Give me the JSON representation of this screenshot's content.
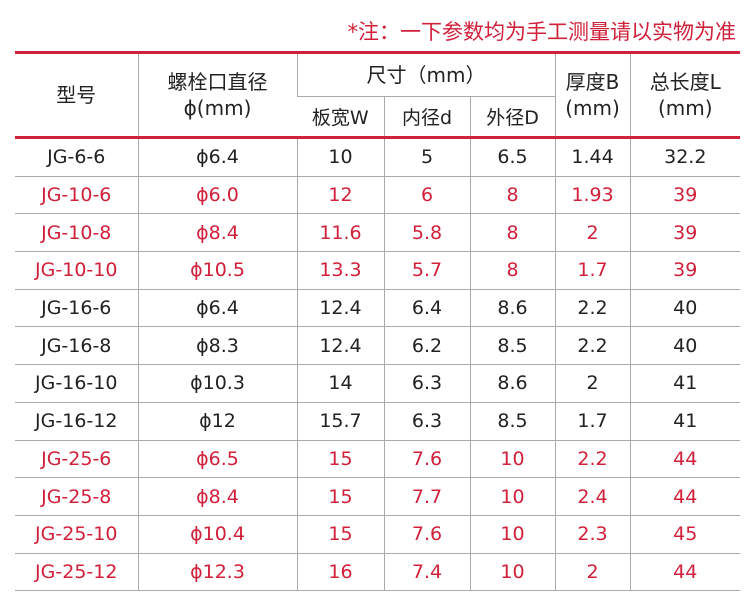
{
  "note": "*注：一下参数均为手工测量请以实物为准",
  "colors": {
    "accent": "#d0203a",
    "grid": "#aaaaaa"
  },
  "header": {
    "model": "型号",
    "bolt_line1": "螺栓口直径",
    "bolt_line2": "ϕ(mm)",
    "size": "尺寸（mm）",
    "width": "板宽W",
    "inner": "内径d",
    "outer": "外径D",
    "thick_line1": "厚度B",
    "thick_line2": "(mm)",
    "length_line1": "总长度L",
    "length_line2": "(mm)"
  },
  "rows": [
    {
      "highlight": false,
      "cells": [
        "JG-6-6",
        "ϕ6.4",
        "10",
        "5",
        "6.5",
        "1.44",
        "32.2"
      ]
    },
    {
      "highlight": true,
      "cells": [
        "JG-10-6",
        "ϕ6.0",
        "12",
        "6",
        "8",
        "1.93",
        "39"
      ]
    },
    {
      "highlight": true,
      "cells": [
        "JG-10-8",
        "ϕ8.4",
        "11.6",
        "5.8",
        "8",
        "2",
        "39"
      ]
    },
    {
      "highlight": true,
      "cells": [
        "JG-10-10",
        "ϕ10.5",
        "13.3",
        "5.7",
        "8",
        "1.7",
        "39"
      ]
    },
    {
      "highlight": false,
      "cells": [
        "JG-16-6",
        "ϕ6.4",
        "12.4",
        "6.4",
        "8.6",
        "2.2",
        "40"
      ]
    },
    {
      "highlight": false,
      "cells": [
        "JG-16-8",
        "ϕ8.3",
        "12.4",
        "6.2",
        "8.5",
        "2.2",
        "40"
      ]
    },
    {
      "highlight": false,
      "cells": [
        "JG-16-10",
        "ϕ10.3",
        "14",
        "6.3",
        "8.6",
        "2",
        "41"
      ]
    },
    {
      "highlight": false,
      "cells": [
        "JG-16-12",
        "ϕ12",
        "15.7",
        "6.3",
        "8.5",
        "1.7",
        "41"
      ]
    },
    {
      "highlight": true,
      "cells": [
        "JG-25-6",
        "ϕ6.5",
        "15",
        "7.6",
        "10",
        "2.2",
        "44"
      ]
    },
    {
      "highlight": true,
      "cells": [
        "JG-25-8",
        "ϕ8.4",
        "15",
        "7.7",
        "10",
        "2.4",
        "44"
      ]
    },
    {
      "highlight": true,
      "cells": [
        "JG-25-10",
        "ϕ10.4",
        "15",
        "7.6",
        "10",
        "2.3",
        "45"
      ]
    },
    {
      "highlight": true,
      "cells": [
        "JG-25-12",
        "ϕ12.3",
        "16",
        "7.4",
        "10",
        "2",
        "44"
      ]
    }
  ]
}
